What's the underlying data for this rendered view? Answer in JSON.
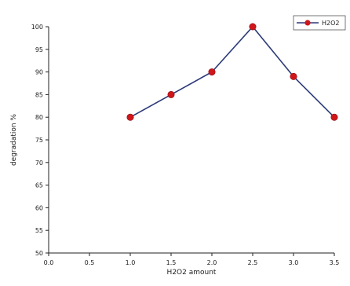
{
  "chart_data": {
    "type": "line",
    "xlabel": "H2O2 amount",
    "ylabel": "degradation %",
    "xlim": [
      0.0,
      3.5
    ],
    "ylim": [
      50,
      100
    ],
    "x_ticks": [
      "0.0",
      "0.5",
      "1.0",
      "1.5",
      "2.0",
      "2.5",
      "3.0",
      "3.5"
    ],
    "y_ticks": [
      "50",
      "55",
      "60",
      "65",
      "70",
      "75",
      "80",
      "85",
      "90",
      "95",
      "100"
    ],
    "grid": false,
    "legend": {
      "position": "top-right"
    },
    "series": [
      {
        "name": "H2O2",
        "line_color": "#2b3a78",
        "marker_color": "#d0161b",
        "points": [
          {
            "x": 1.0,
            "y": 80
          },
          {
            "x": 1.5,
            "y": 85
          },
          {
            "x": 2.0,
            "y": 90
          },
          {
            "x": 2.5,
            "y": 100
          },
          {
            "x": 3.0,
            "y": 89
          },
          {
            "x": 3.5,
            "y": 80
          }
        ]
      }
    ]
  }
}
